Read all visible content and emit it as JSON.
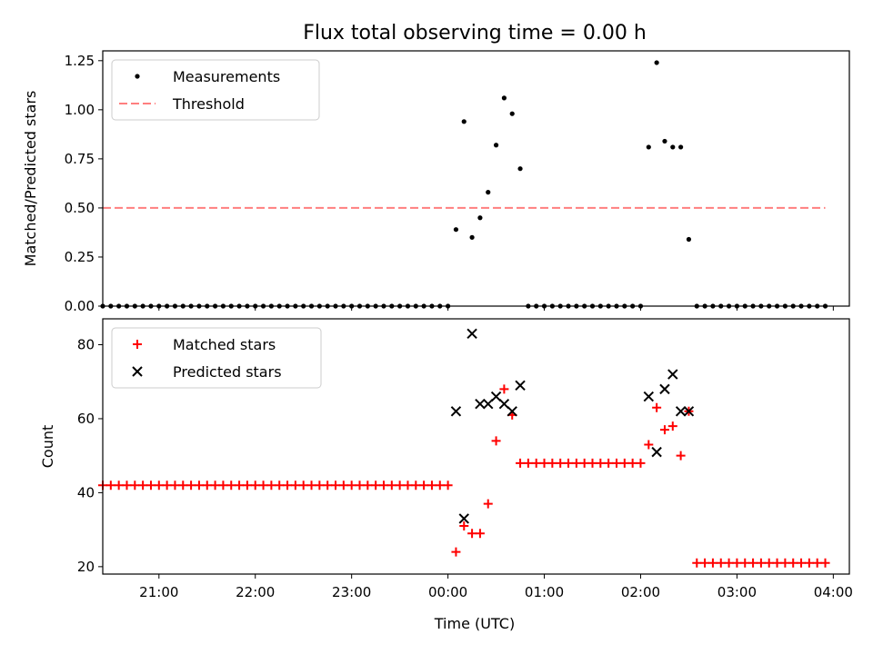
{
  "chart_data": [
    {
      "type": "scatter",
      "title": "Flux total observing time = 0.00 h",
      "xlabel": "",
      "ylabel": "Matched/Predicted stars",
      "xlim": [
        "20:25",
        "04:10"
      ],
      "ylim": [
        0,
        1.3
      ],
      "yticks": [
        "0.00",
        "0.25",
        "0.50",
        "0.75",
        "1.00",
        "1.25"
      ],
      "legend": "upper-left",
      "series": [
        {
          "name": "Measurements",
          "marker": "dot",
          "color": "#000000",
          "points": [
            [
              "20:25",
              0
            ],
            [
              "20:30",
              0
            ],
            [
              "20:35",
              0
            ],
            [
              "20:40",
              0
            ],
            [
              "20:45",
              0
            ],
            [
              "20:50",
              0
            ],
            [
              "20:55",
              0
            ],
            [
              "21:00",
              0
            ],
            [
              "21:05",
              0
            ],
            [
              "21:10",
              0
            ],
            [
              "21:15",
              0
            ],
            [
              "21:20",
              0
            ],
            [
              "21:25",
              0
            ],
            [
              "21:30",
              0
            ],
            [
              "21:35",
              0
            ],
            [
              "21:40",
              0
            ],
            [
              "21:45",
              0
            ],
            [
              "21:50",
              0
            ],
            [
              "21:55",
              0
            ],
            [
              "22:00",
              0
            ],
            [
              "22:05",
              0
            ],
            [
              "22:10",
              0
            ],
            [
              "22:15",
              0
            ],
            [
              "22:20",
              0
            ],
            [
              "22:25",
              0
            ],
            [
              "22:30",
              0
            ],
            [
              "22:35",
              0
            ],
            [
              "22:40",
              0
            ],
            [
              "22:45",
              0
            ],
            [
              "22:50",
              0
            ],
            [
              "22:55",
              0
            ],
            [
              "23:00",
              0
            ],
            [
              "23:05",
              0
            ],
            [
              "23:10",
              0
            ],
            [
              "23:15",
              0
            ],
            [
              "23:20",
              0
            ],
            [
              "23:25",
              0
            ],
            [
              "23:30",
              0
            ],
            [
              "23:35",
              0
            ],
            [
              "23:40",
              0
            ],
            [
              "23:45",
              0
            ],
            [
              "23:50",
              0
            ],
            [
              "23:55",
              0
            ],
            [
              "00:00",
              0
            ],
            [
              "00:05",
              0.39
            ],
            [
              "00:10",
              0.94
            ],
            [
              "00:15",
              0.35
            ],
            [
              "00:20",
              0.45
            ],
            [
              "00:25",
              0.58
            ],
            [
              "00:30",
              0.82
            ],
            [
              "00:35",
              1.06
            ],
            [
              "00:40",
              0.98
            ],
            [
              "00:45",
              0.7
            ],
            [
              "00:50",
              0
            ],
            [
              "00:55",
              0
            ],
            [
              "01:00",
              0
            ],
            [
              "01:05",
              0
            ],
            [
              "01:10",
              0
            ],
            [
              "01:15",
              0
            ],
            [
              "01:20",
              0
            ],
            [
              "01:25",
              0
            ],
            [
              "01:30",
              0
            ],
            [
              "01:35",
              0
            ],
            [
              "01:40",
              0
            ],
            [
              "01:45",
              0
            ],
            [
              "01:50",
              0
            ],
            [
              "01:55",
              0
            ],
            [
              "02:00",
              0
            ],
            [
              "02:05",
              0.81
            ],
            [
              "02:10",
              1.24
            ],
            [
              "02:15",
              0.84
            ],
            [
              "02:20",
              0.81
            ],
            [
              "02:25",
              0.81
            ],
            [
              "02:30",
              0.34
            ],
            [
              "02:35",
              0
            ],
            [
              "02:40",
              0
            ],
            [
              "02:45",
              0
            ],
            [
              "02:50",
              0
            ],
            [
              "02:55",
              0
            ],
            [
              "03:00",
              0
            ],
            [
              "03:05",
              0
            ],
            [
              "03:10",
              0
            ],
            [
              "03:15",
              0
            ],
            [
              "03:20",
              0
            ],
            [
              "03:25",
              0
            ],
            [
              "03:30",
              0
            ],
            [
              "03:35",
              0
            ],
            [
              "03:40",
              0
            ],
            [
              "03:45",
              0
            ],
            [
              "03:50",
              0
            ],
            [
              "03:55",
              0
            ]
          ]
        },
        {
          "name": "Threshold",
          "marker": "dashed-line",
          "color": "#ff7f7f",
          "points": [
            [
              "20:25",
              0.5
            ],
            [
              "03:55",
              0.5
            ]
          ]
        }
      ]
    },
    {
      "type": "scatter",
      "title": "",
      "xlabel": "Time (UTC)",
      "ylabel": "Count",
      "xlim": [
        "20:25",
        "04:10"
      ],
      "ylim": [
        18,
        87
      ],
      "yticks": [
        "20",
        "40",
        "60",
        "80"
      ],
      "xticks": [
        "21:00",
        "22:00",
        "23:00",
        "00:00",
        "01:00",
        "02:00",
        "03:00",
        "04:00"
      ],
      "legend": "upper-left",
      "series": [
        {
          "name": "Matched stars",
          "marker": "plus",
          "color": "#ff0000",
          "points": [
            [
              "20:25",
              42
            ],
            [
              "20:30",
              42
            ],
            [
              "20:35",
              42
            ],
            [
              "20:40",
              42
            ],
            [
              "20:45",
              42
            ],
            [
              "20:50",
              42
            ],
            [
              "20:55",
              42
            ],
            [
              "21:00",
              42
            ],
            [
              "21:05",
              42
            ],
            [
              "21:10",
              42
            ],
            [
              "21:15",
              42
            ],
            [
              "21:20",
              42
            ],
            [
              "21:25",
              42
            ],
            [
              "21:30",
              42
            ],
            [
              "21:35",
              42
            ],
            [
              "21:40",
              42
            ],
            [
              "21:45",
              42
            ],
            [
              "21:50",
              42
            ],
            [
              "21:55",
              42
            ],
            [
              "22:00",
              42
            ],
            [
              "22:05",
              42
            ],
            [
              "22:10",
              42
            ],
            [
              "22:15",
              42
            ],
            [
              "22:20",
              42
            ],
            [
              "22:25",
              42
            ],
            [
              "22:30",
              42
            ],
            [
              "22:35",
              42
            ],
            [
              "22:40",
              42
            ],
            [
              "22:45",
              42
            ],
            [
              "22:50",
              42
            ],
            [
              "22:55",
              42
            ],
            [
              "23:00",
              42
            ],
            [
              "23:05",
              42
            ],
            [
              "23:10",
              42
            ],
            [
              "23:15",
              42
            ],
            [
              "23:20",
              42
            ],
            [
              "23:25",
              42
            ],
            [
              "23:30",
              42
            ],
            [
              "23:35",
              42
            ],
            [
              "23:40",
              42
            ],
            [
              "23:45",
              42
            ],
            [
              "23:50",
              42
            ],
            [
              "23:55",
              42
            ],
            [
              "00:00",
              42
            ],
            [
              "00:05",
              24
            ],
            [
              "00:10",
              31
            ],
            [
              "00:15",
              29
            ],
            [
              "00:20",
              29
            ],
            [
              "00:25",
              37
            ],
            [
              "00:30",
              54
            ],
            [
              "00:35",
              68
            ],
            [
              "00:40",
              61
            ],
            [
              "00:45",
              48
            ],
            [
              "00:50",
              48
            ],
            [
              "00:55",
              48
            ],
            [
              "01:00",
              48
            ],
            [
              "01:05",
              48
            ],
            [
              "01:10",
              48
            ],
            [
              "01:15",
              48
            ],
            [
              "01:20",
              48
            ],
            [
              "01:25",
              48
            ],
            [
              "01:30",
              48
            ],
            [
              "01:35",
              48
            ],
            [
              "01:40",
              48
            ],
            [
              "01:45",
              48
            ],
            [
              "01:50",
              48
            ],
            [
              "01:55",
              48
            ],
            [
              "02:00",
              48
            ],
            [
              "02:05",
              53
            ],
            [
              "02:10",
              63
            ],
            [
              "02:15",
              57
            ],
            [
              "02:20",
              58
            ],
            [
              "02:25",
              50
            ],
            [
              "02:30",
              62
            ],
            [
              "02:35",
              21
            ],
            [
              "02:40",
              21
            ],
            [
              "02:45",
              21
            ],
            [
              "02:50",
              21
            ],
            [
              "02:55",
              21
            ],
            [
              "03:00",
              21
            ],
            [
              "03:05",
              21
            ],
            [
              "03:10",
              21
            ],
            [
              "03:15",
              21
            ],
            [
              "03:20",
              21
            ],
            [
              "03:25",
              21
            ],
            [
              "03:30",
              21
            ],
            [
              "03:35",
              21
            ],
            [
              "03:40",
              21
            ],
            [
              "03:45",
              21
            ],
            [
              "03:50",
              21
            ],
            [
              "03:55",
              21
            ]
          ]
        },
        {
          "name": "Predicted stars",
          "marker": "x",
          "color": "#000000",
          "points": [
            [
              "00:05",
              62
            ],
            [
              "00:10",
              33
            ],
            [
              "00:15",
              83
            ],
            [
              "00:20",
              64
            ],
            [
              "00:25",
              64
            ],
            [
              "00:30",
              66
            ],
            [
              "00:35",
              64
            ],
            [
              "00:40",
              62
            ],
            [
              "00:45",
              69
            ],
            [
              "02:05",
              66
            ],
            [
              "02:10",
              51
            ],
            [
              "02:15",
              68
            ],
            [
              "02:20",
              72
            ],
            [
              "02:25",
              62
            ],
            [
              "02:30",
              62
            ]
          ]
        }
      ]
    }
  ]
}
